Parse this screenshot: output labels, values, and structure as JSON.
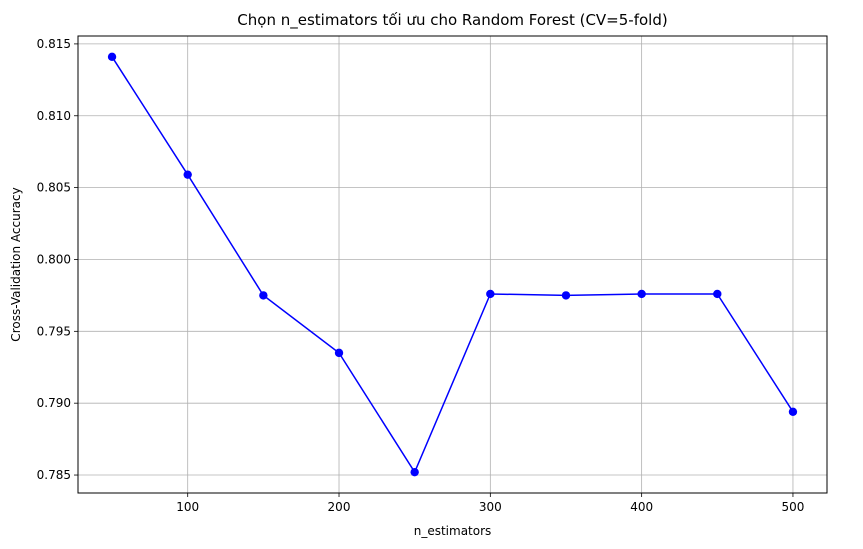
{
  "chart_data": {
    "type": "line",
    "title": "Chọn n_estimators tối ưu cho Random Forest (CV=5-fold)",
    "xlabel": "n_estimators",
    "ylabel": "Cross-Validation Accuracy",
    "x": [
      50,
      100,
      150,
      200,
      250,
      300,
      350,
      400,
      450,
      500
    ],
    "series": [
      {
        "values": [
          0.8141,
          0.8059,
          0.7975,
          0.7935,
          0.7852,
          0.7976,
          0.7975,
          0.7976,
          0.7976,
          0.7894
        ]
      }
    ],
    "xlim": [
      27.5,
      522.5
    ],
    "ylim": [
      0.78375,
      0.81555
    ],
    "xticks": [
      100,
      200,
      300,
      400,
      500
    ],
    "xtick_labels": [
      "100",
      "200",
      "300",
      "400",
      "500"
    ],
    "yticks": [
      0.785,
      0.79,
      0.795,
      0.8,
      0.805,
      0.81,
      0.815
    ],
    "ytick_labels": [
      "0.785",
      "0.790",
      "0.795",
      "0.800",
      "0.805",
      "0.810",
      "0.815"
    ],
    "grid": true,
    "line_color": "#0000ff",
    "marker": "circle"
  }
}
